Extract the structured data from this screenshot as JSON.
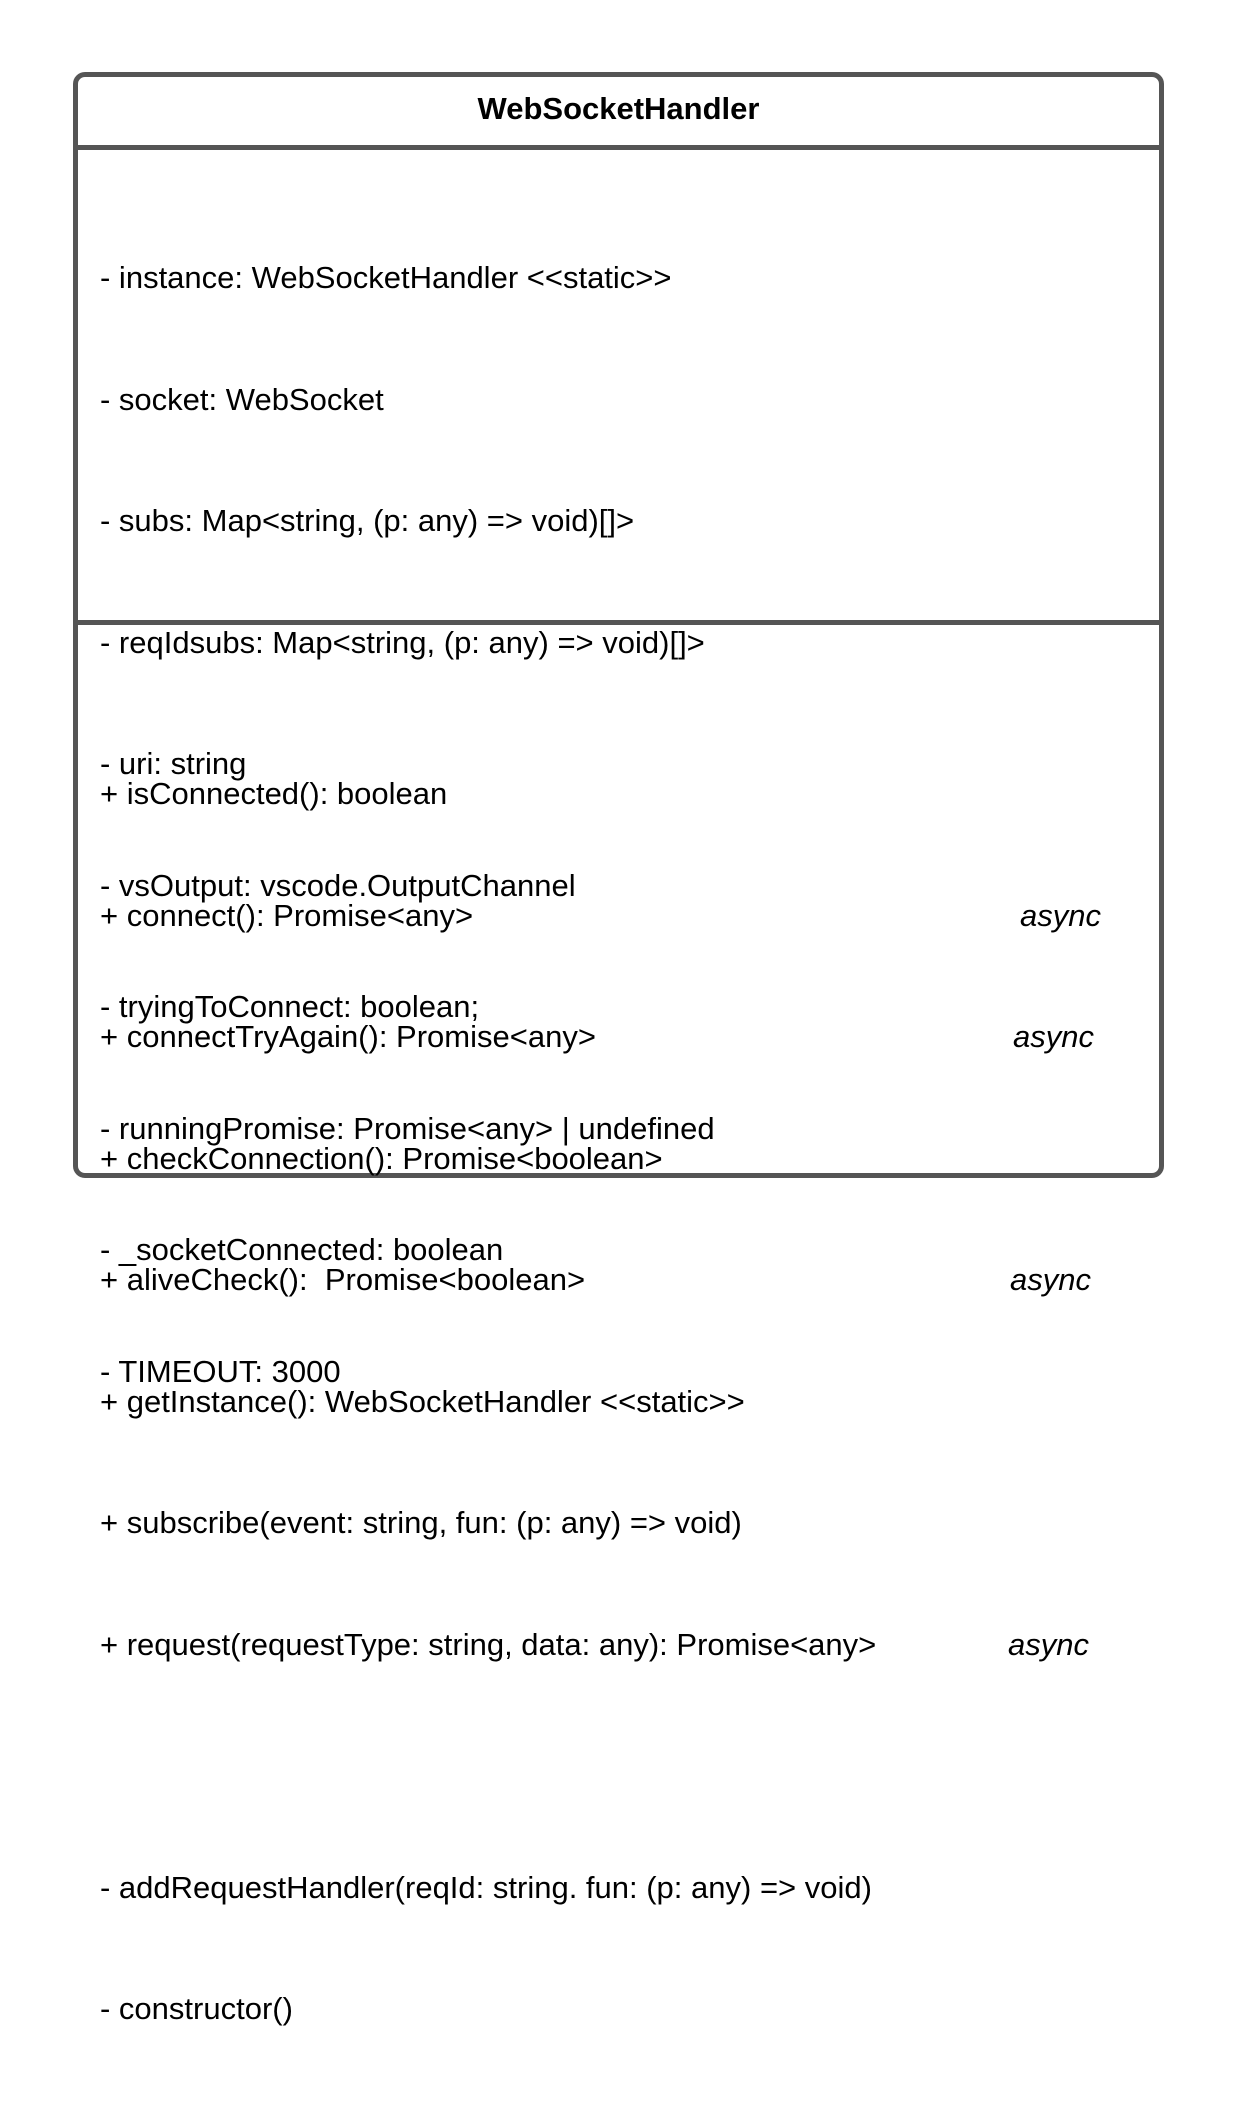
{
  "class": {
    "name": "WebSocketHandler",
    "attributes": [
      "- instance: WebSocketHandler <<static>>",
      "- socket: WebSocket",
      "- subs: Map<string, (p: any) => void)[]>",
      "- reqIdsubs: Map<string, (p: any) => void)[]>",
      "- uri: string",
      "- vsOutput: vscode.OutputChannel",
      "- tryingToConnect: boolean;",
      "- runningPromise: Promise<any> | undefined",
      "- _socketConnected: boolean",
      "- TIMEOUT: 3000"
    ],
    "public_operations": [
      {
        "text": "+ isConnected(): boolean",
        "modifier": ""
      },
      {
        "text": "+ connect(): Promise<any>",
        "modifier": "async"
      },
      {
        "text": "+ connectTryAgain(): Promise<any>",
        "modifier": "async"
      },
      {
        "text": "+ checkConnection(): Promise<boolean>",
        "modifier": ""
      },
      {
        "text": "+ aliveCheck():  Promise<boolean>",
        "modifier": "async"
      },
      {
        "text": "+ getInstance(): WebSocketHandler <<static>>",
        "modifier": ""
      },
      {
        "text": "+ subscribe(event: string, fun: (p: any) => void)",
        "modifier": ""
      },
      {
        "text": "+ request(requestType: string, data: any): Promise<any>",
        "modifier": "async"
      }
    ],
    "private_operations": [
      "- addRequestHandler(reqId: string. fun: (p: any) => void)",
      "- constructor()"
    ]
  }
}
